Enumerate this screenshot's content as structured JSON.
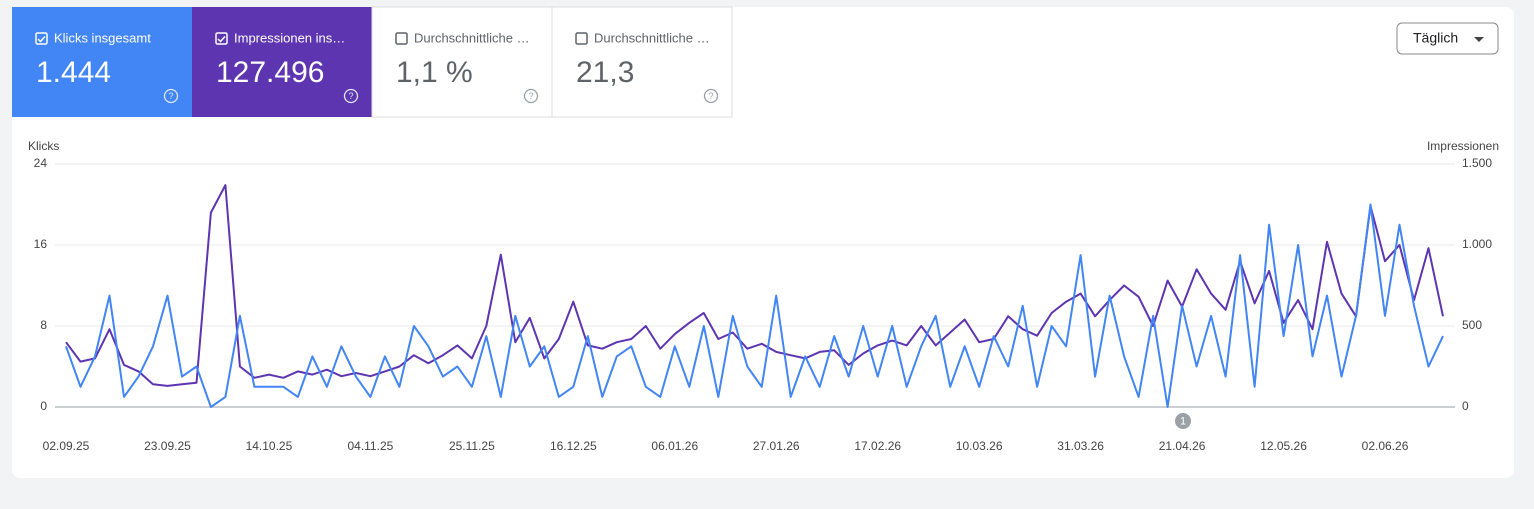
{
  "metrics": [
    {
      "label": "Klicks insgesamt",
      "value": "1.444",
      "checked": true,
      "color": "#4285f4"
    },
    {
      "label": "Impressionen ins…",
      "value": "127.496",
      "checked": true,
      "color": "#5e35b1"
    },
    {
      "label": "Durchschnittliche …",
      "value": "1,1 %",
      "checked": false,
      "color": "#ffffff"
    },
    {
      "label": "Durchschnittliche …",
      "value": "21,3",
      "checked": false,
      "color": "#ffffff"
    }
  ],
  "dropdown": "Täglich",
  "chart_data": {
    "type": "line",
    "y_label": "Klicks",
    "y2_label": "Impressionen",
    "annotation": "1",
    "categories": [
      "02.09.25",
      null,
      null,
      null,
      null,
      null,
      null,
      "23.09.25",
      null,
      null,
      null,
      null,
      null,
      null,
      "14.10.25",
      null,
      null,
      null,
      null,
      null,
      null,
      "04.11.25",
      null,
      null,
      null,
      null,
      null,
      null,
      "25.11.25",
      null,
      null,
      null,
      null,
      null,
      null,
      "16.12.25",
      null,
      null,
      null,
      null,
      null,
      null,
      "06.01.26",
      null,
      null,
      null,
      null,
      null,
      null,
      "27.01.26",
      null,
      null,
      null,
      null,
      null,
      null,
      "17.02.26",
      null,
      null,
      null,
      null,
      null,
      null,
      "10.03.26",
      null,
      null,
      null,
      null,
      null,
      null,
      "31.03.26",
      null,
      null,
      null,
      null,
      null,
      null,
      "21.04.26",
      null,
      null,
      null,
      null,
      null,
      null,
      "12.05.26",
      null,
      null,
      null,
      null,
      null,
      null,
      "02.06.26",
      null,
      null,
      null,
      null
    ],
    "ylim": [
      0,
      24
    ],
    "yticks": [
      0,
      8,
      16,
      24
    ],
    "y2lim": [
      0,
      1500
    ],
    "y2ticks": [
      0,
      500,
      {
        "value": 1000,
        "label": "1.000"
      },
      {
        "value": 1500,
        "label": "1.500"
      }
    ],
    "grid": true,
    "series": [
      {
        "name": "Klicks",
        "color": "#4285f4",
        "values": [
          6,
          2,
          5,
          11,
          1,
          3,
          6,
          11,
          3,
          4,
          0,
          1,
          9,
          2,
          2,
          2,
          1,
          5,
          2,
          6,
          3,
          1,
          5,
          2,
          8,
          6,
          3,
          4,
          2,
          7,
          1,
          9,
          4,
          6,
          1,
          2,
          7,
          1,
          5,
          6,
          2,
          1,
          6,
          2,
          8,
          1,
          9,
          4,
          2,
          11,
          1,
          5,
          2,
          7,
          3,
          8,
          3,
          8,
          2,
          6,
          9,
          2,
          6,
          2,
          7,
          4,
          10,
          2,
          8,
          6,
          15,
          3,
          11,
          5,
          1,
          9,
          0,
          10,
          4,
          9,
          3,
          15,
          2,
          18,
          7,
          16,
          5,
          11,
          3,
          9,
          20,
          9,
          18,
          10,
          4,
          7
        ]
      },
      {
        "name": "Impressionen",
        "color": "#5e35b1",
        "axis": "y2",
        "values": [
          400,
          280,
          300,
          480,
          260,
          220,
          140,
          130,
          140,
          150,
          1200,
          1370,
          250,
          180,
          200,
          180,
          220,
          200,
          230,
          190,
          210,
          190,
          220,
          250,
          320,
          270,
          320,
          380,
          300,
          500,
          940,
          400,
          550,
          300,
          420,
          650,
          380,
          360,
          400,
          420,
          500,
          360,
          450,
          520,
          580,
          420,
          460,
          360,
          390,
          340,
          320,
          300,
          340,
          350,
          260,
          330,
          380,
          410,
          380,
          500,
          380,
          460,
          540,
          400,
          420,
          560,
          480,
          440,
          580,
          650,
          700,
          560,
          660,
          750,
          680,
          500,
          780,
          620,
          850,
          700,
          600,
          900,
          640,
          840,
          520,
          660,
          480,
          1020,
          700,
          560,
          1240,
          900,
          1000,
          660,
          980,
          560
        ]
      }
    ]
  }
}
